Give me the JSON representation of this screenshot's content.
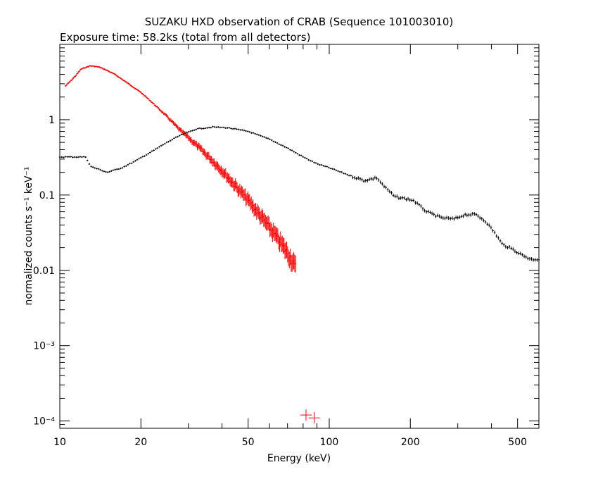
{
  "chart_data": {
    "type": "scatter",
    "title": "SUZAKU HXD observation of CRAB (Sequence 101003010)",
    "subtitle": "Exposure time: 58.2ks (total from all detectors)",
    "xlabel": "Energy (keV)",
    "ylabel": "normalized counts s⁻¹ keV⁻¹",
    "xscale": "log",
    "yscale": "log",
    "xlim": [
      10,
      600
    ],
    "ylim": [
      8e-05,
      10
    ],
    "grid": false,
    "x_ticks": [
      {
        "value": 10,
        "label": "10"
      },
      {
        "value": 20,
        "label": "20"
      },
      {
        "value": 50,
        "label": "50"
      },
      {
        "value": 100,
        "label": "100"
      },
      {
        "value": 200,
        "label": "200"
      },
      {
        "value": 500,
        "label": "500"
      }
    ],
    "y_ticks": [
      {
        "value": 0.0001,
        "label": "10⁻⁴"
      },
      {
        "value": 0.001,
        "label": "10⁻³"
      },
      {
        "value": 0.01,
        "label": "0.01"
      },
      {
        "value": 0.1,
        "label": "0.1"
      },
      {
        "value": 1,
        "label": "1"
      }
    ],
    "series": [
      {
        "color": "#ff0000",
        "kind": "dense",
        "points": [
          [
            10.5,
            2.8
          ],
          [
            11,
            3.3
          ],
          [
            11.5,
            3.9
          ],
          [
            12,
            4.7
          ],
          [
            13,
            5.2
          ],
          [
            14,
            5.0
          ],
          [
            15,
            4.5
          ],
          [
            16,
            4.0
          ],
          [
            18,
            3.0
          ],
          [
            20,
            2.3
          ],
          [
            22,
            1.7
          ],
          [
            25,
            1.1
          ],
          [
            28,
            0.72
          ],
          [
            30,
            0.58
          ],
          [
            33,
            0.42
          ],
          [
            36,
            0.31
          ],
          [
            40,
            0.21
          ],
          [
            45,
            0.13
          ],
          [
            50,
            0.085
          ],
          [
            55,
            0.055
          ],
          [
            60,
            0.037
          ],
          [
            65,
            0.025
          ],
          [
            70,
            0.017
          ],
          [
            75,
            0.011
          ]
        ],
        "extra_points": [
          [
            82,
            0.00012
          ],
          [
            88,
            0.00011
          ]
        ]
      },
      {
        "color": "#000000",
        "kind": "dense",
        "points": [
          [
            10,
            0.32
          ],
          [
            12.5,
            0.32
          ],
          [
            13,
            0.24
          ],
          [
            15,
            0.2
          ],
          [
            17,
            0.23
          ],
          [
            19,
            0.28
          ],
          [
            22,
            0.38
          ],
          [
            25,
            0.5
          ],
          [
            28,
            0.62
          ],
          [
            32,
            0.75
          ],
          [
            37,
            0.8
          ],
          [
            42,
            0.78
          ],
          [
            50,
            0.7
          ],
          [
            60,
            0.55
          ],
          [
            70,
            0.42
          ],
          [
            80,
            0.32
          ],
          [
            90,
            0.26
          ],
          [
            100,
            0.23
          ],
          [
            120,
            0.18
          ],
          [
            135,
            0.155
          ],
          [
            150,
            0.17
          ],
          [
            160,
            0.13
          ],
          [
            175,
            0.095
          ],
          [
            190,
            0.09
          ],
          [
            205,
            0.085
          ],
          [
            230,
            0.06
          ],
          [
            260,
            0.05
          ],
          [
            290,
            0.048
          ],
          [
            320,
            0.055
          ],
          [
            350,
            0.055
          ],
          [
            380,
            0.045
          ],
          [
            410,
            0.032
          ],
          [
            440,
            0.022
          ],
          [
            480,
            0.019
          ],
          [
            520,
            0.016
          ],
          [
            560,
            0.014
          ],
          [
            600,
            0.014
          ]
        ]
      }
    ]
  }
}
